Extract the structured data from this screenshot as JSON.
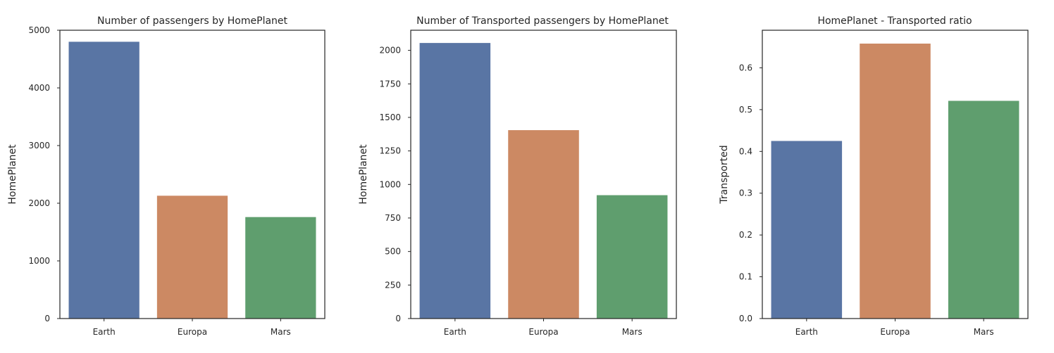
{
  "chart_data": [
    {
      "type": "bar",
      "title": "Number of passengers by HomePlanet",
      "xlabel": "",
      "ylabel": "HomePlanet",
      "categories": [
        "Earth",
        "Europa",
        "Mars"
      ],
      "values": [
        4800,
        2130,
        1760
      ],
      "colors": [
        "#5975a4",
        "#cc8963",
        "#5f9e6e"
      ],
      "ylim": [
        0,
        5000
      ],
      "yticks": [
        0,
        1000,
        2000,
        3000,
        4000,
        5000
      ],
      "ytick_labels": [
        "0",
        "1000",
        "2000",
        "3000",
        "4000",
        "5000"
      ],
      "grid": false
    },
    {
      "type": "bar",
      "title": "Number of Transported passengers by HomePlanet",
      "xlabel": "",
      "ylabel": "HomePlanet",
      "categories": [
        "Earth",
        "Europa",
        "Mars"
      ],
      "values": [
        2055,
        1405,
        920
      ],
      "colors": [
        "#5975a4",
        "#cc8963",
        "#5f9e6e"
      ],
      "ylim": [
        0,
        2150
      ],
      "yticks": [
        0,
        250,
        500,
        750,
        1000,
        1250,
        1500,
        1750,
        2000
      ],
      "ytick_labels": [
        "0",
        "250",
        "500",
        "750",
        "1000",
        "1250",
        "1500",
        "1750",
        "2000"
      ],
      "grid": false
    },
    {
      "type": "bar",
      "title": "HomePlanet - Transported ratio",
      "xlabel": "",
      "ylabel": "Transported",
      "categories": [
        "Earth",
        "Europa",
        "Mars"
      ],
      "values": [
        0.425,
        0.658,
        0.521
      ],
      "colors": [
        "#5975a4",
        "#cc8963",
        "#5f9e6e"
      ],
      "ylim": [
        0,
        0.69
      ],
      "yticks": [
        0,
        0.1,
        0.2,
        0.3,
        0.4,
        0.5,
        0.6
      ],
      "ytick_labels": [
        "0.0",
        "0.1",
        "0.2",
        "0.3",
        "0.4",
        "0.5",
        "0.6"
      ],
      "grid": false
    }
  ]
}
